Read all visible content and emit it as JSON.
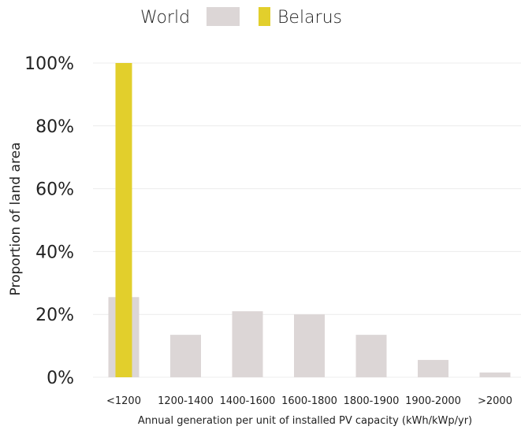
{
  "chart_data": {
    "type": "bar",
    "title": "",
    "xlabel": "Annual generation per unit of installed PV capacity (kWh/kWp/yr)",
    "ylabel": "Proportion of land area",
    "categories": [
      "<1200",
      "1200-1400",
      "1400-1600",
      "1600-1800",
      "1800-1900",
      "1900-2000",
      ">2000"
    ],
    "yticks": [
      "0%",
      "20%",
      "40%",
      "60%",
      "80%",
      "100%"
    ],
    "ylim": [
      0,
      100
    ],
    "grid": true,
    "legend": "top",
    "series": [
      {
        "name": "World",
        "color": "#dcd6d6",
        "values": [
          25.5,
          13.5,
          21,
          20,
          13.5,
          5.5,
          1.5
        ]
      },
      {
        "name": "Belarus",
        "color": "#e2cf2c",
        "values": [
          100,
          0,
          0,
          0,
          0,
          0,
          0
        ]
      }
    ]
  }
}
